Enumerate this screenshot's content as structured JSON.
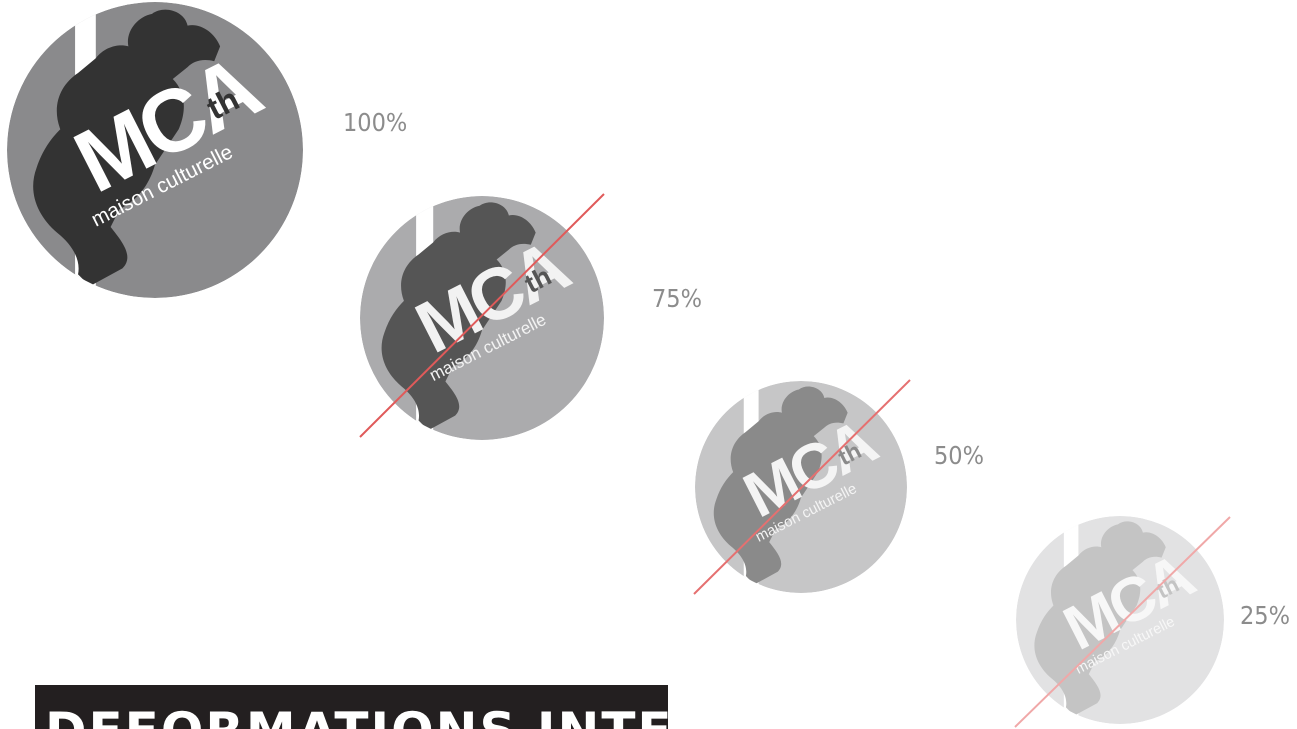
{
  "logos": [
    {
      "name": "MCA",
      "superscript": "th",
      "tagline": "maison culturelle",
      "label": "100%"
    },
    {
      "name": "MCA",
      "superscript": "th",
      "tagline": "maison culturelle",
      "label": "75%"
    },
    {
      "name": "MCA",
      "superscript": "th",
      "tagline": "maison culturelle",
      "label": "50%"
    },
    {
      "name": "MCA",
      "superscript": "th",
      "tagline": "maison culturelle",
      "label": "25%"
    }
  ],
  "heading": "DEFORMATIONS INTERDITES"
}
